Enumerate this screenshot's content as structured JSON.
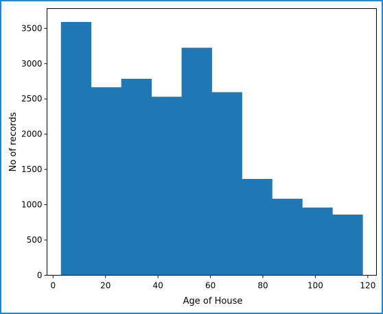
{
  "chart_data": {
    "type": "histogram",
    "xlabel": "Age of House",
    "ylabel": "No of records",
    "xlim": [
      -2.3,
      123.3
    ],
    "ylim": [
      0,
      3780
    ],
    "grid": false,
    "bin_edges": [
      3,
      14.5,
      26,
      37.5,
      49,
      60.5,
      72,
      83.5,
      95,
      106.5,
      118
    ],
    "values": [
      3590,
      2665,
      2785,
      2530,
      3225,
      2595,
      1365,
      1085,
      960,
      860
    ],
    "xticks": [
      0,
      20,
      40,
      60,
      80,
      100,
      120
    ],
    "xtick_labels": [
      "0",
      "20",
      "40",
      "60",
      "80",
      "100",
      "120"
    ],
    "yticks": [
      0,
      500,
      1000,
      1500,
      2000,
      2500,
      3000,
      3500
    ],
    "ytick_labels": [
      "0",
      "500",
      "1000",
      "1500",
      "2000",
      "2500",
      "3000",
      "3500"
    ],
    "bar_color": "#1f77b4",
    "border_color": "#1f88d0"
  }
}
